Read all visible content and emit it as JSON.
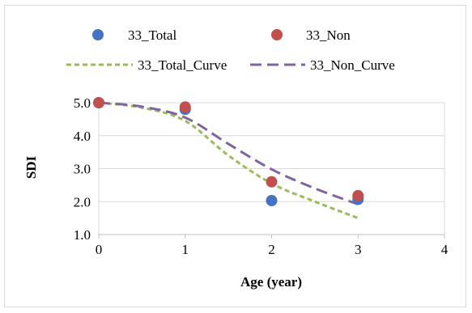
{
  "chart_data": {
    "type": "scatter",
    "xlabel": "Age (year)",
    "ylabel": "SDI",
    "xlim": [
      0,
      4
    ],
    "ylim": [
      1.0,
      5.0
    ],
    "x_ticks": [
      "0",
      "1",
      "2",
      "3",
      "4"
    ],
    "y_ticks": [
      "1.0",
      "2.0",
      "3.0",
      "4.0",
      "5.0"
    ],
    "grid": "horizontal",
    "legend": "top",
    "series": [
      {
        "name": "33_Total",
        "kind": "points",
        "color": "#4472C4",
        "x": [
          0,
          1,
          2,
          3
        ],
        "y": [
          5.0,
          4.8,
          2.03,
          2.07
        ]
      },
      {
        "name": "33_Non",
        "kind": "points",
        "color": "#C0504D",
        "x": [
          0,
          1,
          2,
          3
        ],
        "y": [
          5.0,
          4.87,
          2.6,
          2.18
        ]
      },
      {
        "name": "33_Total_Curve",
        "kind": "line",
        "dash": "short",
        "color": "#9BBB59",
        "x": [
          0,
          0.5,
          1,
          1.5,
          2,
          2.5,
          3
        ],
        "y": [
          5.0,
          4.85,
          4.45,
          3.4,
          2.55,
          2.0,
          1.5
        ]
      },
      {
        "name": "33_Non_Curve",
        "kind": "line",
        "dash": "long",
        "color": "#8064A2",
        "x": [
          0,
          0.5,
          1,
          1.5,
          2,
          2.5,
          3
        ],
        "y": [
          5.0,
          4.88,
          4.55,
          3.75,
          2.98,
          2.4,
          1.92
        ]
      }
    ]
  }
}
